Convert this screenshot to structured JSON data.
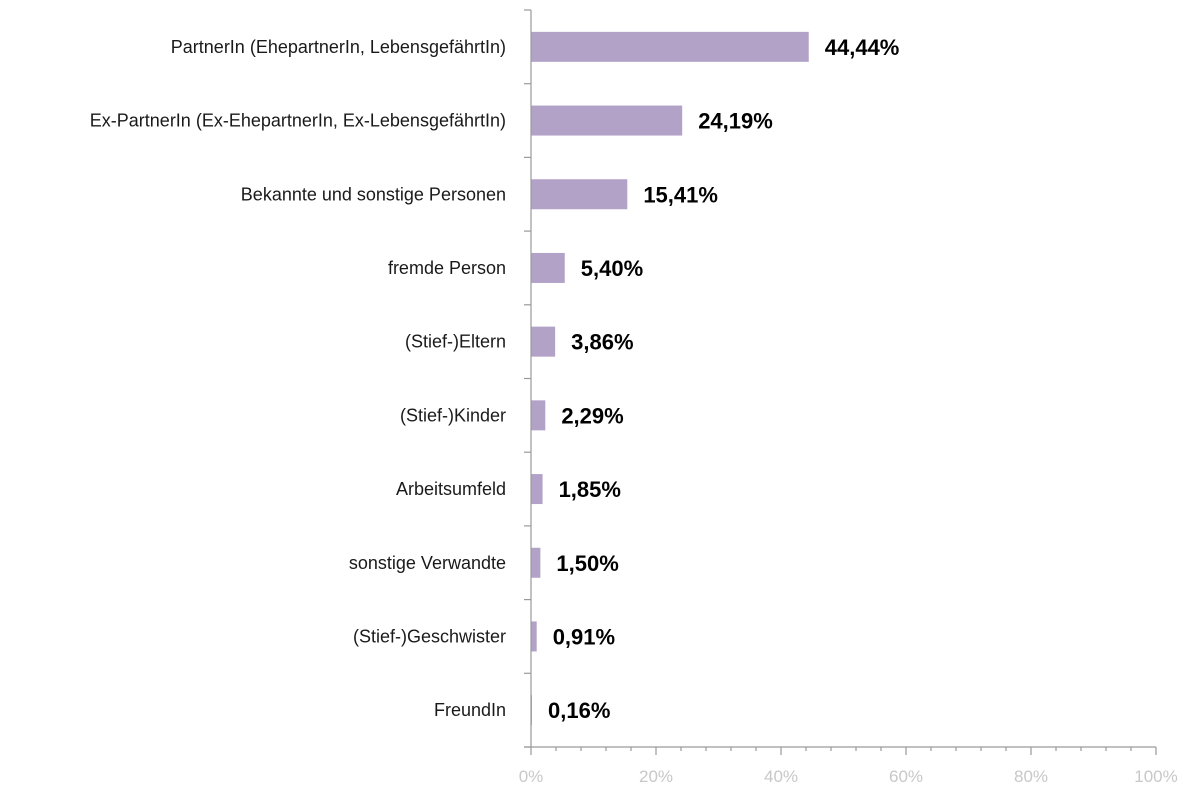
{
  "chart_data": {
    "type": "bar",
    "orientation": "horizontal",
    "title": "",
    "xlabel": "",
    "ylabel": "",
    "xlim": [
      0,
      100
    ],
    "x_ticks": [
      "0%",
      "20%",
      "40%",
      "60%",
      "80%",
      "100%"
    ],
    "grid": false,
    "legend": "none",
    "bar_color": "#b3a2c8",
    "categories": [
      "PartnerIn (EhepartnerIn, LebensgefährtIn)",
      "Ex-PartnerIn (Ex-EhepartnerIn, Ex-LebensgefährtIn)",
      "Bekannte und sonstige Personen",
      "fremde Person",
      "(Stief-)Eltern",
      "(Stief-)Kinder",
      "Arbeitsumfeld",
      "sonstige Verwandte",
      "(Stief-)Geschwister",
      "FreundIn"
    ],
    "values": [
      44.44,
      24.19,
      15.41,
      5.4,
      3.86,
      2.29,
      1.85,
      1.5,
      0.91,
      0.16
    ],
    "value_labels": [
      "44,44%",
      "24,19%",
      "15,41%",
      "5,40%",
      "3,86%",
      "2,29%",
      "1,85%",
      "1,50%",
      "0,91%",
      "0,16%"
    ]
  }
}
